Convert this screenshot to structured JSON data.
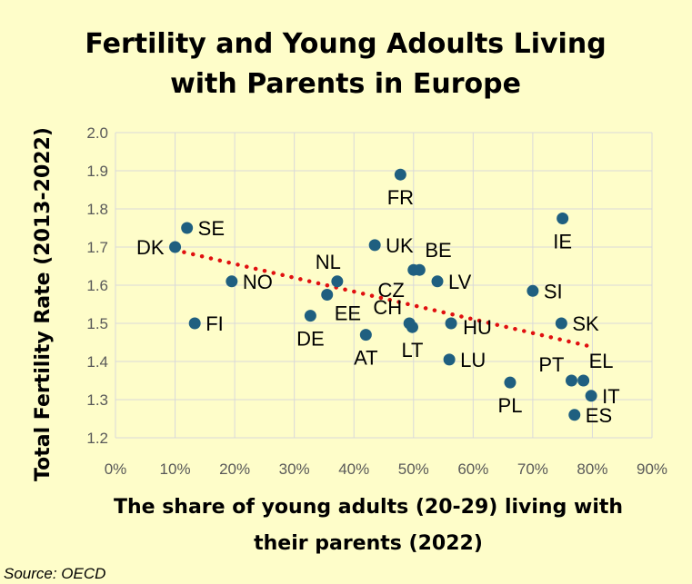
{
  "chart_data": {
    "type": "scatter",
    "title": [
      "Fertility and Young Adoults Living",
      "with Parents in Europe"
    ],
    "xlabel": [
      "The share of young adults (20-29) living with",
      "their parents  (2022)"
    ],
    "ylabel": "Total Fertility Rate (2013-2022)",
    "source": "Source: OECD",
    "xlim": [
      0,
      90
    ],
    "ylim": [
      1.2,
      2.0
    ],
    "xticks": [
      "0%",
      "10%",
      "20%",
      "30%",
      "40%",
      "50%",
      "60%",
      "70%",
      "80%",
      "90%"
    ],
    "yticks": [
      "1.2",
      "1.3",
      "1.4",
      "1.5",
      "1.6",
      "1.7",
      "1.8",
      "1.9",
      "2.0"
    ],
    "grid": true,
    "marker_color": "#1f5f80",
    "trendline": {
      "color": "#e01010",
      "style": "dotted",
      "from": [
        10,
        1.692
      ],
      "to": [
        79.5,
        1.44
      ]
    },
    "points": [
      {
        "label": "DK",
        "x": 10.0,
        "y": 1.7,
        "pos": "left"
      },
      {
        "label": "SE",
        "x": 12.0,
        "y": 1.75,
        "pos": "right"
      },
      {
        "label": "FI",
        "x": 13.3,
        "y": 1.5,
        "pos": "right"
      },
      {
        "label": "NO",
        "x": 19.5,
        "y": 1.61,
        "pos": "right"
      },
      {
        "label": "DE",
        "x": 32.7,
        "y": 1.52,
        "pos": "below"
      },
      {
        "label": "EE",
        "x": 35.5,
        "y": 1.575,
        "pos": "below-right"
      },
      {
        "label": "NL",
        "x": 37.2,
        "y": 1.61,
        "pos": "above"
      },
      {
        "label": "AT",
        "x": 42.0,
        "y": 1.47,
        "pos": "below"
      },
      {
        "label": "UK",
        "x": 43.5,
        "y": 1.705,
        "pos": "right"
      },
      {
        "label": "FR",
        "x": 47.8,
        "y": 1.89,
        "pos": "below"
      },
      {
        "label": "CZ",
        "x": 50.0,
        "y": 1.64,
        "pos": "below-left"
      },
      {
        "label": "BE",
        "x": 51.0,
        "y": 1.64,
        "pos": "above-right"
      },
      {
        "label": "CH",
        "x": 49.3,
        "y": 1.5,
        "pos": "above-left"
      },
      {
        "label": "LT",
        "x": 49.8,
        "y": 1.49,
        "pos": "below"
      },
      {
        "label": "LV",
        "x": 54.0,
        "y": 1.61,
        "pos": "right"
      },
      {
        "label": "HU",
        "x": 56.3,
        "y": 1.5,
        "pos": "right-low"
      },
      {
        "label": "LU",
        "x": 56.0,
        "y": 1.405,
        "pos": "right"
      },
      {
        "label": "PL",
        "x": 66.2,
        "y": 1.345,
        "pos": "below"
      },
      {
        "label": "SI",
        "x": 70.0,
        "y": 1.585,
        "pos": "right"
      },
      {
        "label": "IE",
        "x": 75.0,
        "y": 1.775,
        "pos": "below"
      },
      {
        "label": "SK",
        "x": 74.8,
        "y": 1.5,
        "pos": "right"
      },
      {
        "label": "PT",
        "x": 76.5,
        "y": 1.35,
        "pos": "above-left"
      },
      {
        "label": "EL",
        "x": 78.5,
        "y": 1.35,
        "pos": "above-right"
      },
      {
        "label": "IT",
        "x": 79.8,
        "y": 1.31,
        "pos": "right"
      },
      {
        "label": "ES",
        "x": 77.0,
        "y": 1.26,
        "pos": "right"
      }
    ]
  }
}
